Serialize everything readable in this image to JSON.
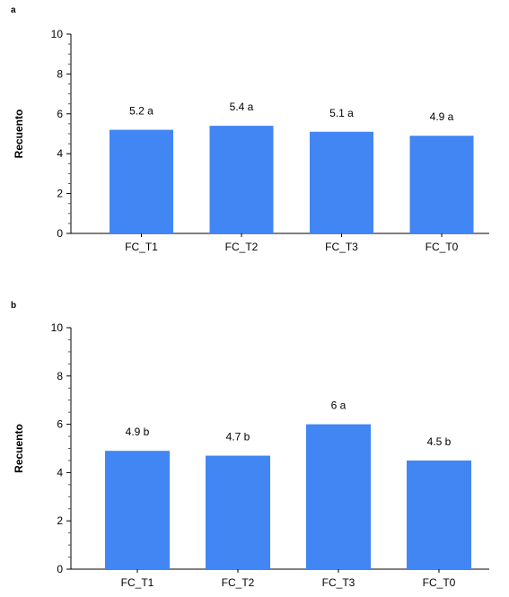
{
  "chart_data": [
    {
      "type": "bar",
      "panel": "a",
      "ylabel": "Recuento",
      "ylim": [
        0,
        10
      ],
      "yticks": [
        0,
        2,
        4,
        6,
        8,
        10
      ],
      "categories": [
        "FC_T1",
        "FC_T2",
        "FC_T3",
        "FC_T0"
      ],
      "values": [
        5.2,
        5.4,
        5.1,
        4.9
      ],
      "data_labels": [
        "5.2 a",
        "5.4 a",
        "5.1 a",
        "4.9 a"
      ],
      "bar_color": "#4286f4",
      "grid": false
    },
    {
      "type": "bar",
      "panel": "b",
      "ylabel": "Recuento",
      "ylim": [
        0,
        10
      ],
      "yticks": [
        0,
        2,
        4,
        6,
        8,
        10
      ],
      "categories": [
        "FC_T1",
        "FC_T2",
        "FC_T3",
        "FC_T0"
      ],
      "values": [
        4.9,
        4.7,
        6,
        4.5
      ],
      "data_labels": [
        "4.9 b",
        "4.7 b",
        "6 a",
        "4.5 b"
      ],
      "bar_color": "#4286f4",
      "grid": false
    }
  ]
}
